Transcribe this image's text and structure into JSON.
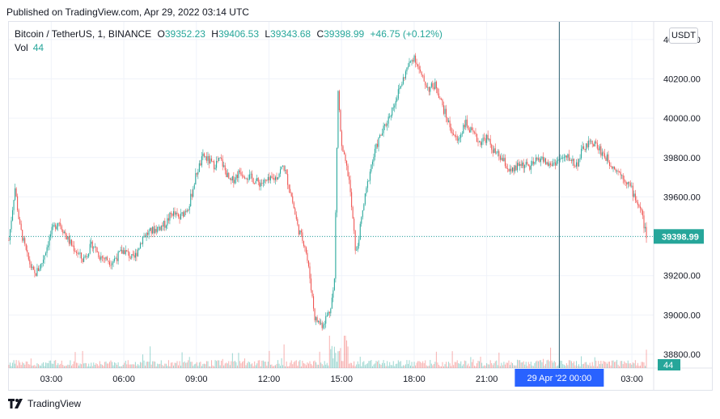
{
  "published": "Published on TradingView.com, Apr 29, 2022 03:14 UTC",
  "legend": {
    "symbol": "Bitcoin / TetherUS, 1, BINANCE",
    "o_label": "O",
    "o_value": "39352.23",
    "h_label": "H",
    "h_value": "39406.53",
    "l_label": "L",
    "l_value": "39343.68",
    "c_label": "C",
    "c_value": "39398.99",
    "change": "+46.75 (+0.12%)",
    "vol_label": "Vol",
    "vol_value": "44"
  },
  "currency_button": "USDT",
  "footer_brand": "TradingView",
  "colors": {
    "up": "#26a69a",
    "down": "#ef5350",
    "crosshair": "#2962ff",
    "grid": "#f0f3fa"
  },
  "chart_data": {
    "type": "candlestick",
    "y_ticks": [
      "40400.00",
      "40200.00",
      "40000.00",
      "39800.00",
      "39600.00",
      "39400.00",
      "39200.00",
      "39000.00",
      "38800.00"
    ],
    "x_ticks": [
      "03:00",
      "06:00",
      "09:00",
      "12:00",
      "15:00",
      "18:00",
      "21:00",
      "03:00"
    ],
    "ylim": [
      38730,
      40490
    ],
    "xlim_hours": [
      1.25,
      27.9
    ],
    "last_price": "39398.99",
    "volume_last_label": "44",
    "crosshair_label": "29 Apr '22   00:00",
    "crosshair_hour": 24.0,
    "price_path": [
      [
        1.25,
        39380
      ],
      [
        1.5,
        39650
      ],
      [
        1.7,
        39450
      ],
      [
        2.0,
        39300
      ],
      [
        2.3,
        39200
      ],
      [
        2.6,
        39260
      ],
      [
        3.0,
        39420
      ],
      [
        3.3,
        39480
      ],
      [
        3.7,
        39380
      ],
      [
        4.0,
        39330
      ],
      [
        4.3,
        39280
      ],
      [
        4.7,
        39360
      ],
      [
        5.0,
        39300
      ],
      [
        5.5,
        39270
      ],
      [
        6.0,
        39330
      ],
      [
        6.4,
        39280
      ],
      [
        6.8,
        39400
      ],
      [
        7.2,
        39430
      ],
      [
        7.7,
        39460
      ],
      [
        8.0,
        39520
      ],
      [
        8.3,
        39490
      ],
      [
        8.7,
        39560
      ],
      [
        9.0,
        39720
      ],
      [
        9.3,
        39810
      ],
      [
        9.7,
        39760
      ],
      [
        10.0,
        39790
      ],
      [
        10.4,
        39670
      ],
      [
        10.8,
        39730
      ],
      [
        11.2,
        39700
      ],
      [
        11.6,
        39670
      ],
      [
        12.0,
        39680
      ],
      [
        12.3,
        39700
      ],
      [
        12.6,
        39760
      ],
      [
        12.9,
        39620
      ],
      [
        13.2,
        39440
      ],
      [
        13.5,
        39350
      ],
      [
        13.7,
        39180
      ],
      [
        13.9,
        38980
      ],
      [
        14.2,
        38950
      ],
      [
        14.5,
        39020
      ],
      [
        14.7,
        39150
      ],
      [
        14.85,
        40150
      ],
      [
        15.0,
        39850
      ],
      [
        15.3,
        39700
      ],
      [
        15.6,
        39300
      ],
      [
        15.9,
        39550
      ],
      [
        16.2,
        39750
      ],
      [
        16.5,
        39880
      ],
      [
        16.8,
        39960
      ],
      [
        17.1,
        40050
      ],
      [
        17.4,
        40150
      ],
      [
        17.7,
        40250
      ],
      [
        18.0,
        40320
      ],
      [
        18.3,
        40210
      ],
      [
        18.6,
        40150
      ],
      [
        18.9,
        40170
      ],
      [
        19.2,
        40050
      ],
      [
        19.5,
        39950
      ],
      [
        19.8,
        39880
      ],
      [
        20.1,
        39980
      ],
      [
        20.4,
        39920
      ],
      [
        20.7,
        39880
      ],
      [
        21.0,
        39900
      ],
      [
        21.3,
        39830
      ],
      [
        21.7,
        39780
      ],
      [
        22.0,
        39720
      ],
      [
        22.4,
        39770
      ],
      [
        22.8,
        39750
      ],
      [
        23.2,
        39800
      ],
      [
        23.6,
        39760
      ],
      [
        24.0,
        39790
      ],
      [
        24.4,
        39800
      ],
      [
        24.7,
        39760
      ],
      [
        25.0,
        39850
      ],
      [
        25.4,
        39880
      ],
      [
        25.8,
        39820
      ],
      [
        26.2,
        39760
      ],
      [
        26.6,
        39710
      ],
      [
        26.9,
        39660
      ],
      [
        27.2,
        39580
      ],
      [
        27.4,
        39520
      ],
      [
        27.6,
        39398
      ]
    ]
  }
}
